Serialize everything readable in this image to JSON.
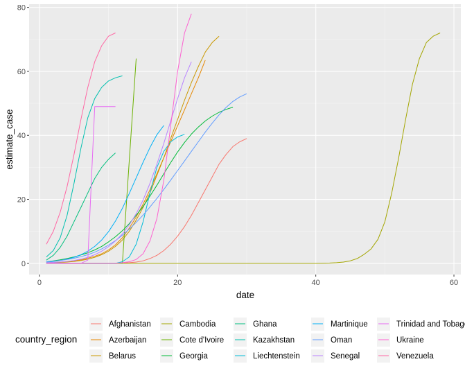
{
  "chart_data": {
    "type": "line",
    "title": "",
    "xlabel": "date",
    "ylabel": "estimate_case",
    "xlim": [
      -1.5,
      61
    ],
    "ylim": [
      -3.5,
      81
    ],
    "x_ticks": [
      0,
      20,
      40,
      60
    ],
    "y_ticks": [
      0,
      20,
      40,
      60,
      80
    ],
    "x_tick_labels": [
      "0",
      "20",
      "40",
      "60"
    ],
    "y_tick_labels": [
      "0",
      "20",
      "40",
      "60",
      "80"
    ],
    "grid": true,
    "legend": {
      "title": "country_region",
      "position": "bottom",
      "columns": 5
    },
    "series": [
      {
        "name": "Afghanistan",
        "color": "#F8766D",
        "x": [
          1,
          2,
          3,
          4,
          5,
          6,
          7,
          8,
          9,
          10,
          11,
          12,
          13,
          14,
          15,
          16,
          17,
          18,
          19,
          20,
          21,
          22,
          23,
          24,
          25,
          26,
          27,
          28,
          29,
          30
        ],
        "y": [
          0,
          0,
          0,
          0,
          0,
          0,
          0,
          0,
          0,
          0,
          0,
          0.1,
          0.2,
          0.4,
          0.8,
          1.5,
          2.5,
          4,
          6,
          8.5,
          11.5,
          15,
          19,
          23,
          27,
          31,
          34,
          36.5,
          38,
          39
        ]
      },
      {
        "name": "Azerbaijan",
        "color": "#E58700",
        "x": [
          1,
          2,
          3,
          4,
          5,
          6,
          7,
          8,
          9,
          10,
          11,
          12,
          13,
          14,
          15,
          16,
          17,
          18,
          19,
          20,
          21,
          22,
          23,
          24
        ],
        "y": [
          0.2,
          0.3,
          0.4,
          0.6,
          0.8,
          1.1,
          1.6,
          2.2,
          3,
          4.2,
          5.8,
          8,
          11,
          14.5,
          18.5,
          23,
          28,
          33,
          38,
          43,
          48,
          53,
          58,
          63.5
        ]
      },
      {
        "name": "Belarus",
        "color": "#C99800",
        "x": [
          1,
          2,
          3,
          4,
          5,
          6,
          7,
          8,
          9,
          10,
          11,
          12,
          13,
          14,
          15,
          16,
          17,
          18,
          19,
          20,
          21,
          22,
          23,
          24,
          25,
          26
        ],
        "y": [
          0.1,
          0.2,
          0.3,
          0.4,
          0.6,
          0.9,
          1.3,
          1.9,
          2.7,
          3.8,
          5.3,
          7.3,
          10,
          13.5,
          17.5,
          22,
          27.5,
          33,
          39,
          45,
          51,
          56.5,
          61.5,
          66,
          69,
          71
        ]
      },
      {
        "name": "Cambodia",
        "color": "#A3A500",
        "x": [
          1,
          5,
          10,
          15,
          20,
          25,
          30,
          35,
          40,
          42,
          43,
          44,
          45,
          46,
          47,
          48,
          49,
          50,
          51,
          52,
          53,
          54,
          55,
          56,
          57,
          58
        ],
        "y": [
          0,
          0,
          0,
          0,
          0,
          0,
          0,
          0,
          0,
          0.1,
          0.2,
          0.4,
          0.8,
          1.5,
          2.8,
          4.5,
          7.5,
          13,
          22,
          33,
          45,
          56,
          64,
          69,
          71,
          72
        ]
      },
      {
        "name": "Cote d'Ivoire",
        "color": "#6BB100",
        "x": [
          1,
          2,
          3,
          4,
          5,
          6,
          7,
          8,
          9,
          10,
          11,
          12,
          13,
          14
        ],
        "y": [
          0,
          0,
          0,
          0,
          0,
          0,
          0,
          0,
          0,
          0,
          0,
          0,
          32,
          64
        ]
      },
      {
        "name": "Georgia",
        "color": "#00BA38",
        "x": [
          1,
          2,
          3,
          4,
          5,
          6,
          7,
          8,
          9,
          10,
          11,
          12,
          13,
          14,
          15,
          16,
          17,
          18,
          19,
          20,
          21,
          22,
          23,
          24,
          25,
          26,
          27,
          28
        ],
        "y": [
          0.5,
          0.8,
          1.1,
          1.5,
          2,
          2.6,
          3.3,
          4.2,
          5.3,
          6.7,
          8.3,
          10.2,
          12.4,
          15,
          17.8,
          21,
          24.4,
          28,
          31.5,
          34.8,
          37.8,
          40.4,
          42.6,
          44.5,
          46,
          47.2,
          48.1,
          48.8
        ]
      },
      {
        "name": "Ghana",
        "color": "#00BF7D",
        "x": [
          1,
          2,
          3,
          4,
          5,
          6,
          7,
          8,
          9,
          10,
          11
        ],
        "y": [
          1,
          2.5,
          5,
          8.5,
          13,
          17.5,
          22,
          26.5,
          30,
          32.5,
          34.5
        ]
      },
      {
        "name": "Kazakhstan",
        "color": "#00C0AF",
        "x": [
          1,
          2,
          3,
          4,
          5,
          6,
          7,
          8,
          9,
          10,
          11,
          12
        ],
        "y": [
          2,
          4,
          8,
          15,
          25,
          36,
          45.5,
          51.5,
          55,
          57,
          58,
          58.6
        ]
      },
      {
        "name": "Liechtenstein",
        "color": "#00BCD8",
        "x": [
          1,
          2,
          3,
          4,
          5,
          6,
          7,
          8,
          9,
          10,
          11,
          12,
          13,
          14,
          15,
          16,
          17,
          18,
          19,
          20,
          21
        ],
        "y": [
          0,
          0,
          0,
          0,
          0,
          0,
          0,
          0,
          0,
          0,
          0,
          0.5,
          2,
          6,
          13,
          22,
          30,
          35,
          38,
          39.5,
          40.3
        ]
      },
      {
        "name": "Martinique",
        "color": "#00B0F6",
        "x": [
          1,
          2,
          3,
          4,
          5,
          6,
          7,
          8,
          9,
          10,
          11,
          12,
          13,
          14,
          15,
          16,
          17,
          18
        ],
        "y": [
          0.4,
          0.6,
          0.9,
          1.3,
          1.9,
          2.7,
          3.8,
          5.3,
          7.3,
          9.9,
          13.2,
          17.2,
          21.8,
          26.7,
          31.6,
          36.2,
          40.2,
          43.1
        ]
      },
      {
        "name": "Oman",
        "color": "#619CFF",
        "x": [
          1,
          2,
          3,
          4,
          5,
          6,
          7,
          8,
          9,
          10,
          11,
          12,
          13,
          14,
          15,
          16,
          17,
          18,
          19,
          20,
          21,
          22,
          23,
          24,
          25,
          26,
          27,
          28,
          29,
          30
        ],
        "y": [
          0.5,
          0.7,
          0.9,
          1.2,
          1.6,
          2.1,
          2.7,
          3.5,
          4.5,
          5.7,
          7.1,
          8.8,
          10.7,
          12.8,
          15.1,
          17.6,
          20.3,
          23.1,
          26,
          29,
          32,
          35,
          38,
          41,
          43.8,
          46.4,
          48.7,
          50.6,
          52,
          53
        ]
      },
      {
        "name": "Senegal",
        "color": "#B983FF",
        "x": [
          1,
          2,
          3,
          4,
          5,
          6,
          7,
          8,
          9,
          10,
          11,
          12,
          13,
          14,
          15,
          16,
          17,
          18,
          19,
          20,
          21,
          22
        ],
        "y": [
          0.2,
          0.3,
          0.4,
          0.6,
          0.9,
          1.3,
          1.9,
          2.7,
          3.8,
          5.2,
          7,
          9.2,
          12,
          15.5,
          19.8,
          25,
          31,
          37.5,
          44.5,
          51.5,
          58,
          63
        ]
      },
      {
        "name": "Trinidad and Tobago",
        "color": "#E76BF3",
        "x": [
          1,
          2,
          3,
          4,
          5,
          6,
          7,
          8,
          9,
          10,
          11
        ],
        "y": [
          0,
          0,
          0,
          0,
          0,
          0,
          1,
          49,
          49,
          49,
          49
        ]
      },
      {
        "name": "Ukraine",
        "color": "#FD61D1",
        "x": [
          1,
          2,
          3,
          4,
          5,
          6,
          7,
          8,
          9,
          10,
          11,
          12,
          13,
          14,
          15,
          16,
          17,
          18,
          19,
          20,
          21,
          22
        ],
        "y": [
          0,
          0,
          0,
          0,
          0,
          0,
          0,
          0,
          0,
          0,
          0,
          0.2,
          0.5,
          1.2,
          3,
          7,
          14,
          26,
          43,
          60,
          72,
          78
        ]
      },
      {
        "name": "Venezuela",
        "color": "#FF67A4",
        "x": [
          1,
          2,
          3,
          4,
          5,
          6,
          7,
          8,
          9,
          10,
          11
        ],
        "y": [
          6,
          10,
          16,
          24,
          34,
          45,
          55,
          63,
          68,
          71,
          72
        ]
      }
    ]
  }
}
